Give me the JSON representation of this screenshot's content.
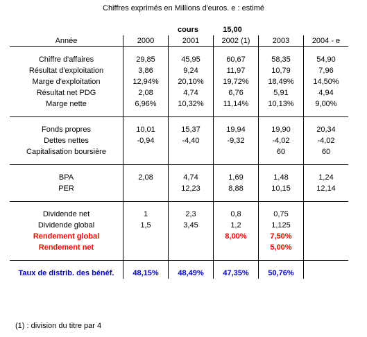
{
  "title": "Chiffres exprimés en Millions d'euros.  e : estimé",
  "cours_label": "cours",
  "cours_value": "15,00",
  "header": {
    "label": "Année",
    "years": [
      "2000",
      "2001",
      "2002 (1)",
      "2003",
      "2004 - e"
    ]
  },
  "sections": [
    {
      "rows": [
        {
          "label": "Chiffre d'affaires",
          "values": [
            "29,85",
            "45,95",
            "60,67",
            "58,35",
            "54,90"
          ]
        },
        {
          "label": "Résultat d'exploitation",
          "values": [
            "3,86",
            "9,24",
            "11,97",
            "10,79",
            "7,96"
          ]
        },
        {
          "label": "Marge d'exploitation",
          "values": [
            "12,94%",
            "20,10%",
            "19,72%",
            "18,49%",
            "14,50%"
          ]
        },
        {
          "label": "Résultat net PDG",
          "values": [
            "2,08",
            "4,74",
            "6,76",
            "5,91",
            "4,94"
          ]
        },
        {
          "label": "Marge nette",
          "values": [
            "6,96%",
            "10,32%",
            "11,14%",
            "10,13%",
            "9,00%"
          ]
        }
      ]
    },
    {
      "rows": [
        {
          "label": "Fonds propres",
          "values": [
            "10,01",
            "15,37",
            "19,94",
            "19,90",
            "20,34"
          ]
        },
        {
          "label": "Dettes nettes",
          "values": [
            "-0,94",
            "-4,40",
            "-9,32",
            "-4,02",
            "-4,02"
          ]
        },
        {
          "label": "Capitalisation boursière",
          "values": [
            "",
            "",
            "",
            "60",
            "60"
          ]
        }
      ]
    },
    {
      "rows": [
        {
          "label": "BPA",
          "values": [
            "2,08",
            "4,74",
            "1,69",
            "1,48",
            "1,24"
          ]
        },
        {
          "label": "PER",
          "values": [
            "",
            "12,23",
            "8,88",
            "10,15",
            "12,14"
          ]
        }
      ]
    },
    {
      "rows": [
        {
          "label": "Dividende net",
          "values": [
            "1",
            "2,3",
            "0,8",
            "0,75",
            ""
          ]
        },
        {
          "label": "Dividende global",
          "values": [
            "1,5",
            "3,45",
            "1,2",
            "1,125",
            ""
          ]
        },
        {
          "label": "Rendement global",
          "values": [
            "",
            "",
            "8,00%",
            "7,50%",
            ""
          ],
          "style": "red"
        },
        {
          "label": "Rendement net",
          "values": [
            "",
            "",
            "",
            "5,00%",
            ""
          ],
          "style": "red"
        }
      ]
    },
    {
      "rows": [
        {
          "label": "Taux de distrib. des bénéf.",
          "values": [
            "48,15%",
            "48,49%",
            "47,35%",
            "50,76%",
            ""
          ],
          "style": "blue"
        }
      ]
    }
  ],
  "footnote": "(1) : division du titre par 4",
  "colors": {
    "highlight_red": "#ff0000",
    "highlight_blue": "#0000cc"
  }
}
